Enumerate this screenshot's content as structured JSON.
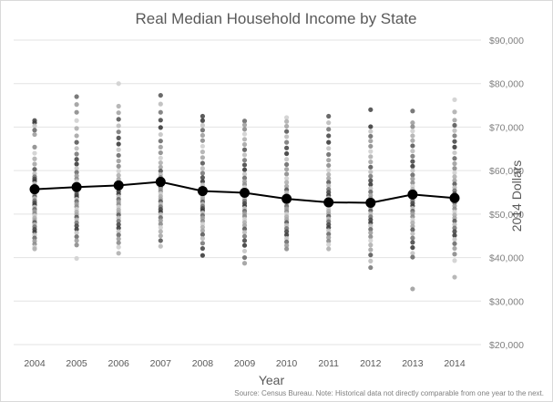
{
  "chart_data": {
    "type": "scatter",
    "title": "Real Median Household Income by State",
    "xlabel": "Year",
    "ylabel": "2014 Dollars",
    "source": "Source: Census Bureau. Note: Historical data not directly comparable from one year to the next.",
    "x": [
      2004,
      2005,
      2006,
      2007,
      2008,
      2009,
      2010,
      2011,
      2012,
      2013,
      2014
    ],
    "ylim": [
      20000,
      90000
    ],
    "yticks": [
      20000,
      30000,
      40000,
      50000,
      60000,
      70000,
      80000,
      90000
    ],
    "ytick_labels": [
      "$20,000",
      "$30,000",
      "$40,000",
      "$50,000",
      "$60,000",
      "$70,000",
      "$80,000",
      "$90,000"
    ],
    "y_axis_side": "right",
    "grid": true,
    "legend": "none",
    "national_median": {
      "values": [
        55700,
        56200,
        56600,
        57400,
        55300,
        54900,
        53500,
        52700,
        52600,
        54500,
        53700
      ],
      "color": "#000000"
    },
    "state_points": [
      {
        "year": 2004,
        "values": [
          71500,
          71000,
          70300,
          69300,
          68300,
          65400,
          64000,
          62700,
          61500,
          60300,
          59300,
          58600,
          58100,
          57600,
          57000,
          56500,
          56100,
          55700,
          55300,
          54800,
          54400,
          54000,
          53600,
          53100,
          52600,
          52100,
          51600,
          51100,
          50600,
          50100,
          49600,
          49100,
          48600,
          48100,
          47600,
          47100,
          46500,
          45900,
          45200,
          44500,
          43800,
          43100,
          42400,
          42000
        ]
      },
      {
        "year": 2005,
        "values": [
          77000,
          75200,
          73400,
          71500,
          69700,
          68000,
          66500,
          65100,
          63800,
          62600,
          61500,
          60500,
          59600,
          58800,
          58100,
          57500,
          56900,
          56400,
          55900,
          55400,
          54900,
          54400,
          53900,
          53400,
          52900,
          52300,
          51700,
          51100,
          50500,
          49900,
          49300,
          48700,
          48000,
          47300,
          46500,
          45700,
          44800,
          43900,
          42900,
          39800
        ]
      },
      {
        "year": 2006,
        "values": [
          80000,
          74800,
          73300,
          71800,
          70300,
          68900,
          67500,
          66100,
          64800,
          63500,
          62200,
          61000,
          59900,
          58900,
          58000,
          57200,
          56500,
          55800,
          55200,
          54600,
          54000,
          53400,
          52800,
          52200,
          51600,
          51000,
          50400,
          49800,
          49100,
          48400,
          47600,
          46800,
          46000,
          45200,
          44300,
          43400,
          42400,
          41000
        ]
      },
      {
        "year": 2007,
        "values": [
          77300,
          75300,
          73400,
          71600,
          69900,
          68300,
          66800,
          65400,
          64100,
          62900,
          61800,
          60800,
          59900,
          59100,
          58400,
          57800,
          57200,
          56700,
          56200,
          55700,
          55200,
          54700,
          54100,
          53500,
          52900,
          52300,
          51700,
          51100,
          50500,
          49900,
          49200,
          48500,
          47700,
          46900,
          46000,
          45000,
          43900,
          42600
        ]
      },
      {
        "year": 2008,
        "values": [
          72500,
          71500,
          70400,
          69300,
          68100,
          66900,
          65600,
          64300,
          63000,
          61700,
          60500,
          59400,
          58400,
          57500,
          56700,
          56000,
          55400,
          54800,
          54300,
          53800,
          53300,
          52800,
          52300,
          51800,
          51300,
          50800,
          50300,
          49700,
          49100,
          48400,
          47700,
          47000,
          46200,
          45300,
          44400,
          43300,
          42100,
          40500
        ]
      },
      {
        "year": 2009,
        "values": [
          71400,
          70500,
          69500,
          68400,
          67200,
          66000,
          64800,
          63600,
          62400,
          61300,
          60200,
          59200,
          58300,
          57500,
          56800,
          56100,
          55500,
          54900,
          54300,
          53700,
          53100,
          52500,
          51900,
          51300,
          50700,
          50100,
          49500,
          48800,
          48100,
          47400,
          46600,
          45800,
          44900,
          43900,
          42800,
          41500,
          40000,
          38700
        ]
      },
      {
        "year": 2010,
        "values": [
          72200,
          71300,
          70200,
          69000,
          67800,
          66500,
          65200,
          63900,
          62600,
          61400,
          60300,
          59200,
          58200,
          57300,
          56400,
          55600,
          54900,
          54200,
          53600,
          53000,
          52400,
          51800,
          51200,
          50600,
          50000,
          49400,
          48800,
          48100,
          47400,
          46700,
          46000,
          45200,
          44400,
          43600,
          42800,
          42000
        ]
      },
      {
        "year": 2011,
        "values": [
          72500,
          71000,
          69500,
          68000,
          66500,
          65100,
          63700,
          62400,
          61200,
          60100,
          59100,
          58200,
          57300,
          56500,
          55700,
          55000,
          54300,
          53700,
          53100,
          52500,
          51900,
          51300,
          50700,
          50100,
          49500,
          48900,
          48300,
          47600,
          46900,
          46200,
          45400,
          44600,
          43800,
          43000,
          42000
        ]
      },
      {
        "year": 2012,
        "values": [
          74000,
          70100,
          69000,
          67900,
          66800,
          65600,
          64400,
          63200,
          62000,
          60800,
          59700,
          58700,
          57700,
          56800,
          55900,
          55100,
          54300,
          53600,
          52900,
          52200,
          51500,
          50800,
          50100,
          49400,
          48700,
          48000,
          47300,
          46500,
          45700,
          44800,
          43900,
          42900,
          41800,
          40600,
          39200,
          37700
        ]
      },
      {
        "year": 2013,
        "values": [
          73700,
          71000,
          70100,
          69100,
          68000,
          66900,
          65700,
          64500,
          63300,
          62100,
          61000,
          60000,
          59000,
          58100,
          57200,
          56400,
          55700,
          55000,
          54300,
          53700,
          53100,
          52500,
          51900,
          51300,
          50700,
          50100,
          49400,
          48700,
          48000,
          47200,
          46400,
          45500,
          44500,
          43500,
          42300,
          41000,
          40100,
          32800
        ]
      },
      {
        "year": 2014,
        "values": [
          76300,
          73500,
          71600,
          70400,
          69200,
          68000,
          66700,
          65400,
          64100,
          62800,
          61600,
          60500,
          59500,
          58600,
          57700,
          56900,
          56100,
          55400,
          54700,
          54000,
          53300,
          52600,
          51900,
          51200,
          50500,
          49800,
          49100,
          48400,
          47600,
          46800,
          46000,
          45100,
          44200,
          43200,
          42100,
          40800,
          39300,
          35500
        ]
      }
    ],
    "point_shades": [
      "#4a4a4a",
      "#8c8c8c",
      "#bdbdbd",
      "#6b6b6b",
      "#a6a6a6",
      "#3c3c3c",
      "#d0d0d0",
      "#7a7a7a",
      "#9e9e9e",
      "#5a5a5a",
      "#c4c4c4",
      "#b0b0b0"
    ]
  }
}
